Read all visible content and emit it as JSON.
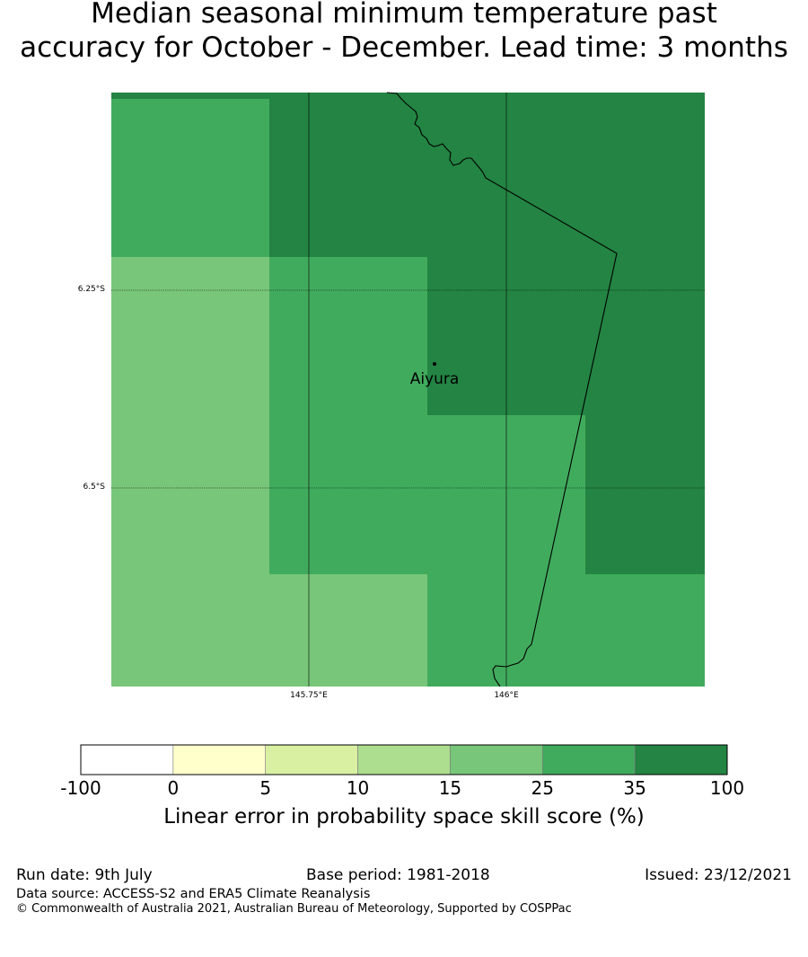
{
  "title": {
    "line1": "Median seasonal minimum temperature past",
    "line2": "accuracy for October - December. Lead time: 3 months"
  },
  "map": {
    "lat_labels": [
      "6.25°S",
      "6.5°S"
    ],
    "lon_labels": [
      "145.75°E",
      "146°E"
    ],
    "place": {
      "name": "Aiyura"
    },
    "cells": [
      {
        "col": 0,
        "row": 0,
        "category": "25-35"
      },
      {
        "col": 1,
        "row": 0,
        "category": "35-100"
      },
      {
        "col": 2,
        "row": 0,
        "category": "35-100"
      },
      {
        "col": 3,
        "row": 0,
        "category": "35-100"
      },
      {
        "col": 0,
        "row": 1,
        "category": "15-25"
      },
      {
        "col": 1,
        "row": 1,
        "category": "25-35"
      },
      {
        "col": 2,
        "row": 1,
        "category": "35-100"
      },
      {
        "col": 3,
        "row": 1,
        "category": "35-100"
      },
      {
        "col": 0,
        "row": 2,
        "category": "15-25"
      },
      {
        "col": 1,
        "row": 2,
        "category": "25-35"
      },
      {
        "col": 2,
        "row": 2,
        "category": "25-35"
      },
      {
        "col": 3,
        "row": 2,
        "category": "35-100"
      },
      {
        "col": 0,
        "row": 3,
        "category": "15-25"
      },
      {
        "col": 1,
        "row": 3,
        "category": "15-25"
      },
      {
        "col": 2,
        "row": 3,
        "category": "25-35"
      },
      {
        "col": 3,
        "row": 3,
        "category": "25-35"
      }
    ]
  },
  "colorbar": {
    "tick_labels": [
      "-100",
      "0",
      "5",
      "10",
      "15",
      "25",
      "35",
      "100"
    ],
    "bins": [
      {
        "range": "-100-0",
        "color": "#ffffff"
      },
      {
        "range": "0-5",
        "color": "#ffffcc"
      },
      {
        "range": "5-10",
        "color": "#d9f0a3"
      },
      {
        "range": "10-15",
        "color": "#addd8e"
      },
      {
        "range": "15-25",
        "color": "#78c679"
      },
      {
        "range": "25-35",
        "color": "#41ab5d"
      },
      {
        "range": "35-100",
        "color": "#238443"
      }
    ],
    "label": "Linear error in probability space skill score (%)"
  },
  "footer": {
    "run_date": "Run date: 9th July",
    "base_period": "Base period: 1981-2018",
    "issued": "Issued: 23/12/2021",
    "data_source": "Data source: ACCESS-S2 and ERA5 Climate Reanalysis",
    "copyright": "© Commonwealth of Australia 2021, Australian Bureau of Meteorology, Supported by COSPPac"
  }
}
